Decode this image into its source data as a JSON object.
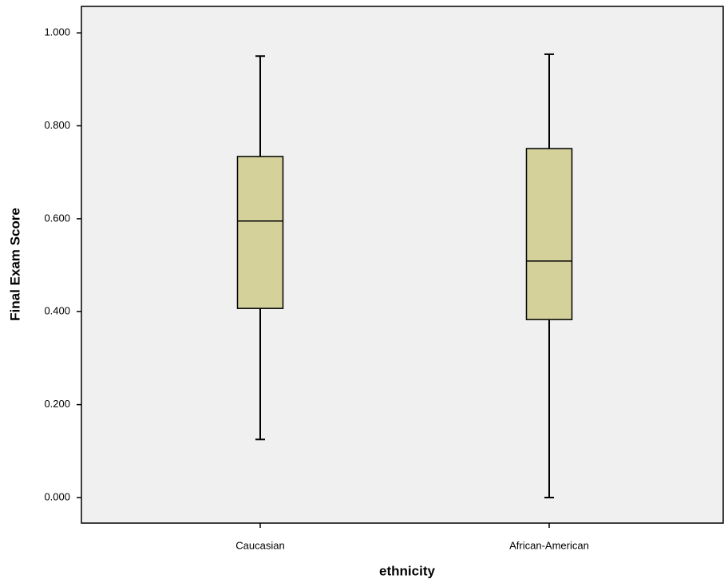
{
  "chart_data": {
    "type": "box",
    "xlabel": "ethnicity",
    "ylabel": "Final Exam Score",
    "categories": [
      "Caucasian",
      "African-American"
    ],
    "min": [
      0.125,
      0.0
    ],
    "q1": [
      0.407,
      0.383
    ],
    "median": [
      0.595,
      0.509
    ],
    "q3": [
      0.734,
      0.751
    ],
    "max": [
      0.95,
      0.954
    ],
    "color": "#d4d19b",
    "ylim": [
      -0.055,
      1.057
    ],
    "yticks": [
      {
        "value": 0,
        "label": "0.000"
      },
      {
        "value": 0.2,
        "label": "0.200"
      },
      {
        "value": 0.4,
        "label": "0.400"
      },
      {
        "value": 0.6,
        "label": "0.600"
      },
      {
        "value": 0.8,
        "label": "0.800"
      },
      {
        "value": 1.0,
        "label": "1.000"
      }
    ]
  }
}
